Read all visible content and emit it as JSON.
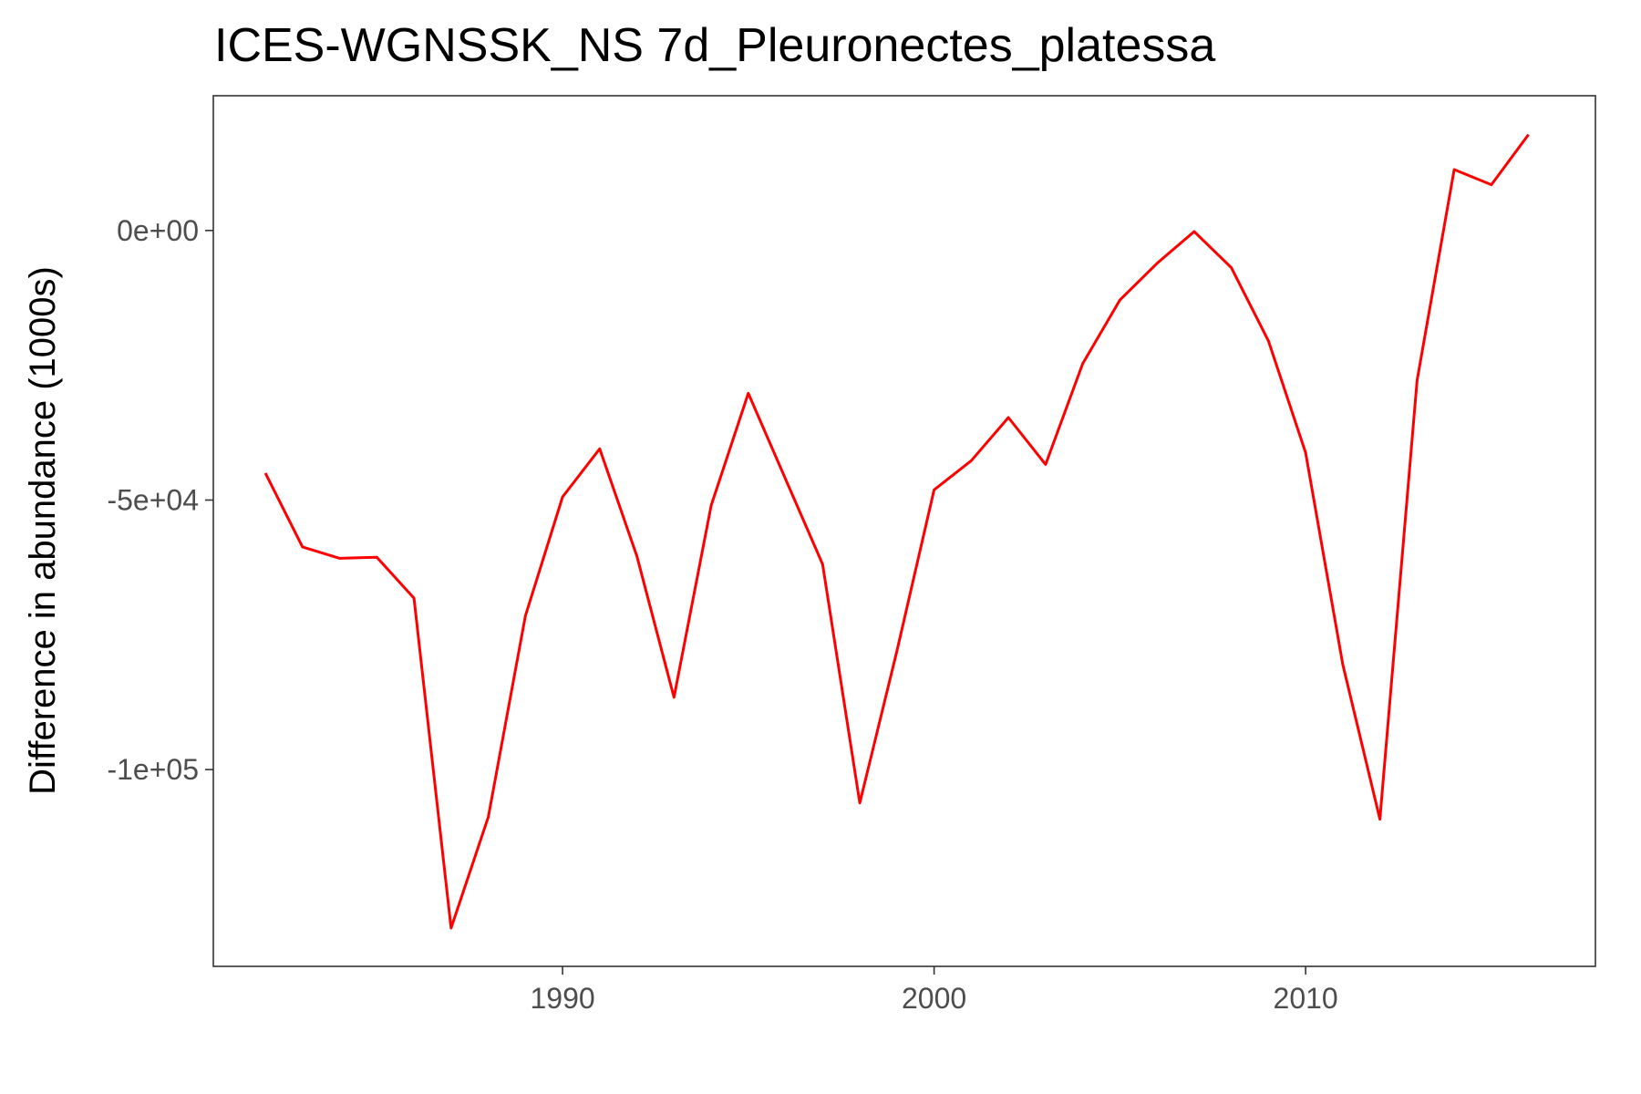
{
  "chart_data": {
    "type": "line",
    "title": "ICES-WGNSSK_NS 7d_Pleuronectes_platessa",
    "xlabel": "",
    "ylabel": "Difference in abundance (1000s)",
    "xlim": [
      1980.6,
      2017.8
    ],
    "ylim": [
      -136500,
      25000
    ],
    "x_ticks": [
      1990,
      2000,
      2010
    ],
    "x_tick_labels": [
      "1990",
      "2000",
      "2010"
    ],
    "y_ticks": [
      0,
      -50000,
      -100000
    ],
    "y_tick_labels": [
      "0e+00",
      "-5e+04",
      "-1e+05"
    ],
    "grid": false,
    "legend": "none",
    "series": [
      {
        "color": "#ff0000",
        "x": [
          1982,
          1983,
          1984,
          1985,
          1986,
          1987,
          1988,
          1989,
          1990,
          1991,
          1992,
          1993,
          1994,
          1995,
          1996,
          1997,
          1998,
          1999,
          2000,
          2001,
          2002,
          2003,
          2004,
          2005,
          2006,
          2007,
          2008,
          2009,
          2010,
          2011,
          2012,
          2013,
          2014,
          2015,
          2016
        ],
        "y": [
          -45000,
          -58700,
          -60800,
          -60600,
          -68200,
          -129400,
          -108800,
          -71500,
          -49400,
          -40500,
          -60400,
          -86600,
          -51000,
          -30200,
          -46100,
          -61900,
          -106200,
          -78000,
          -48100,
          -42700,
          -34700,
          -43400,
          -24700,
          -12900,
          -6100,
          -200,
          -6900,
          -20500,
          -41200,
          -80500,
          -109200,
          -27800,
          11300,
          8500,
          17800
        ]
      }
    ]
  }
}
